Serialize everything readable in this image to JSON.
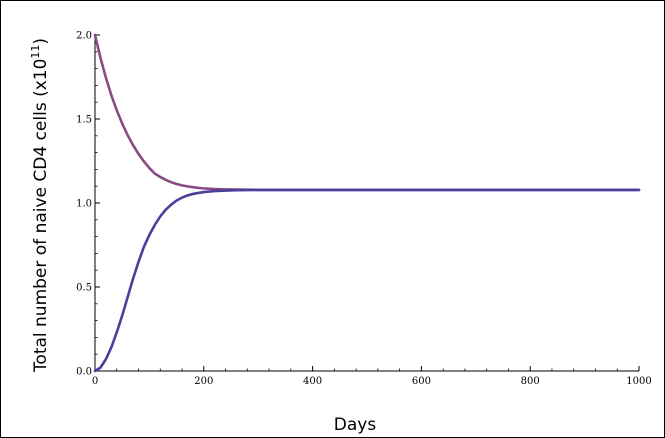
{
  "chart_data": {
    "type": "line",
    "xlabel": "Days",
    "ylabel_main": "Total number of naive CD4 cells (x10",
    "ylabel_sup": "11",
    "ylabel_close": ")",
    "xlim": [
      0,
      1000
    ],
    "ylim": [
      0,
      2.0
    ],
    "xticks": [
      0,
      200,
      400,
      600,
      800,
      1000
    ],
    "yticks": [
      0.0,
      0.5,
      1.0,
      1.5,
      2.0
    ],
    "ytick_labels": [
      "0.0",
      "0.5",
      "1.0",
      "1.5",
      "2.0"
    ],
    "grid": false,
    "series": [
      {
        "color": "#8a4a86",
        "x": [
          0,
          10,
          20,
          30,
          40,
          50,
          60,
          70,
          80,
          90,
          100,
          110,
          120,
          130,
          140,
          150,
          160,
          170,
          180,
          190,
          200,
          220,
          240,
          260,
          280,
          300,
          350,
          400,
          500,
          600,
          700,
          800,
          900,
          1000
        ],
        "y": [
          2.0,
          1.865,
          1.746,
          1.642,
          1.552,
          1.473,
          1.404,
          1.344,
          1.292,
          1.247,
          1.208,
          1.175,
          1.155,
          1.138,
          1.124,
          1.113,
          1.105,
          1.099,
          1.094,
          1.09,
          1.087,
          1.083,
          1.081,
          1.08,
          1.079,
          1.078,
          1.078,
          1.078,
          1.078,
          1.078,
          1.078,
          1.078,
          1.078,
          1.078
        ]
      },
      {
        "color": "#4b3f9a",
        "x": [
          0,
          10,
          20,
          30,
          40,
          50,
          60,
          70,
          80,
          90,
          100,
          110,
          120,
          130,
          140,
          150,
          160,
          170,
          180,
          190,
          200,
          220,
          240,
          260,
          280,
          300,
          320,
          350,
          400,
          500,
          600,
          700,
          800,
          900,
          1000
        ],
        "y": [
          0.0,
          0.02,
          0.07,
          0.14,
          0.23,
          0.33,
          0.44,
          0.55,
          0.65,
          0.74,
          0.81,
          0.87,
          0.92,
          0.96,
          0.99,
          1.015,
          1.032,
          1.045,
          1.054,
          1.06,
          1.065,
          1.071,
          1.074,
          1.076,
          1.077,
          1.0775,
          1.078,
          1.078,
          1.078,
          1.078,
          1.078,
          1.078,
          1.078,
          1.078,
          1.078
        ]
      }
    ]
  }
}
